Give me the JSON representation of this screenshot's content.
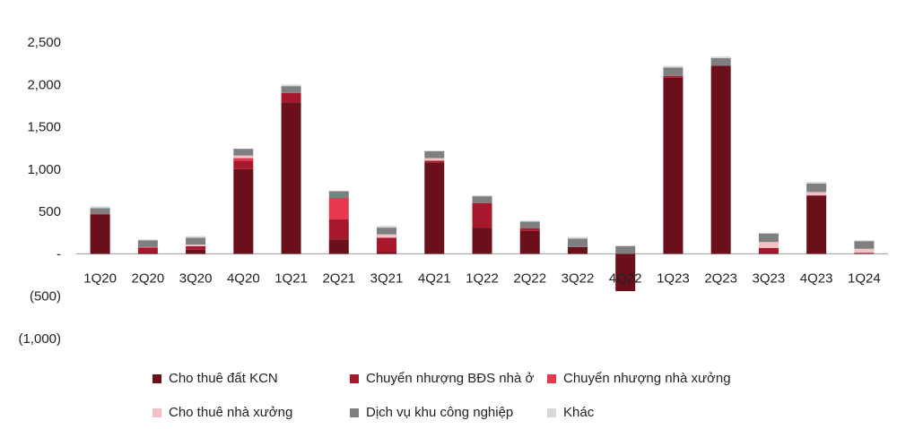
{
  "chart_data": {
    "type": "bar",
    "stacked": true,
    "title": "",
    "xlabel": "",
    "ylabel": "",
    "ylim": [
      -1000,
      2500
    ],
    "yticks": [
      -1000,
      -500,
      0,
      500,
      1000,
      1500,
      2000,
      2500
    ],
    "ytick_labels": [
      "(1,000)",
      "(500)",
      "-",
      "500",
      "1,000",
      "1,500",
      "2,000",
      "2,500"
    ],
    "grid": false,
    "legend_position": "bottom",
    "categories": [
      "1Q20",
      "2Q20",
      "3Q20",
      "4Q20",
      "1Q21",
      "2Q21",
      "3Q21",
      "4Q21",
      "1Q22",
      "2Q22",
      "3Q22",
      "4Q22",
      "1Q23",
      "2Q23",
      "3Q23",
      "4Q23",
      "1Q24"
    ],
    "series": [
      {
        "name": "Cho thuê đất KCN",
        "color": "#6b0f1a",
        "values": [
          460,
          10,
          50,
          1000,
          1790,
          170,
          20,
          1080,
          310,
          270,
          80,
          -440,
          2080,
          2220,
          10,
          690,
          10
        ]
      },
      {
        "name": "Chuyển nhượng BĐS nhà ở",
        "color": "#a8182d",
        "values": [
          10,
          60,
          40,
          100,
          110,
          240,
          170,
          20,
          290,
          30,
          0,
          0,
          20,
          0,
          60,
          0,
          0
        ]
      },
      {
        "name": "Chuyển nhượng nhà xưởng",
        "color": "#e8384f",
        "values": [
          0,
          10,
          0,
          30,
          0,
          250,
          0,
          0,
          0,
          0,
          0,
          0,
          0,
          0,
          0,
          0,
          0
        ]
      },
      {
        "name": "Cho thuê nhà xưởng",
        "color": "#f4c0c6",
        "values": [
          0,
          0,
          20,
          30,
          0,
          0,
          40,
          30,
          0,
          0,
          0,
          0,
          0,
          0,
          70,
          40,
          50
        ]
      },
      {
        "name": "Dịch vụ khu công nghiệp",
        "color": "#7f7f7f",
        "values": [
          70,
          80,
          80,
          80,
          80,
          80,
          80,
          80,
          80,
          80,
          100,
          90,
          100,
          90,
          100,
          100,
          90
        ]
      },
      {
        "name": "Khác",
        "color": "#d9d9d9",
        "values": [
          20,
          10,
          20,
          0,
          20,
          0,
          20,
          10,
          10,
          10,
          20,
          10,
          20,
          20,
          10,
          20,
          10
        ]
      }
    ]
  }
}
